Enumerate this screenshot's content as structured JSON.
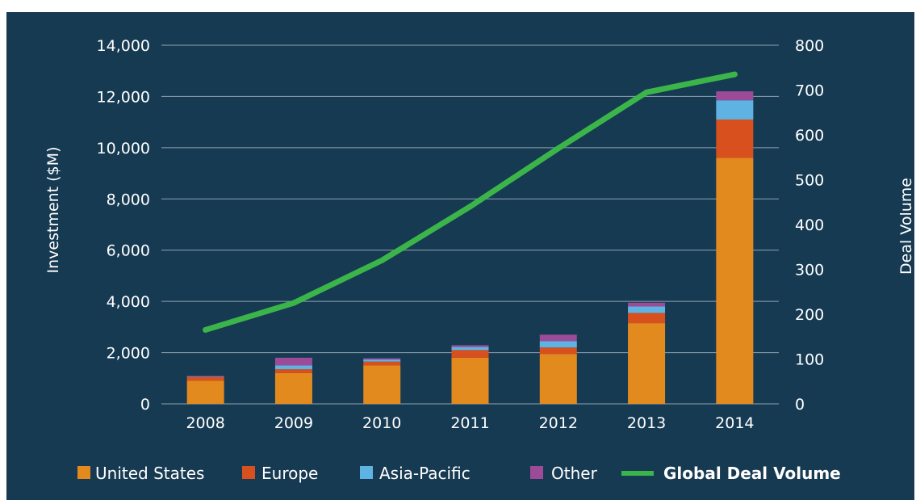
{
  "chart_data": {
    "type": "bar",
    "stacked": true,
    "categories": [
      "2008",
      "2009",
      "2010",
      "2011",
      "2012",
      "2013",
      "2014"
    ],
    "series": [
      {
        "name": "United States",
        "color": "#e38a1f",
        "axis": "left",
        "values": [
          900,
          1200,
          1500,
          1800,
          1950,
          3150,
          9600
        ]
      },
      {
        "name": "Europe",
        "color": "#d8501e",
        "axis": "left",
        "values": [
          150,
          150,
          150,
          300,
          250,
          400,
          1500
        ]
      },
      {
        "name": "Asia-Pacific",
        "color": "#5fb3e3",
        "axis": "left",
        "values": [
          20,
          150,
          80,
          120,
          250,
          250,
          750
        ]
      },
      {
        "name": "Other",
        "color": "#9b4b98",
        "axis": "left",
        "values": [
          20,
          300,
          50,
          70,
          250,
          150,
          350
        ]
      }
    ],
    "line_series": {
      "name": "Global Deal Volume",
      "color": "#3bb54a",
      "axis": "right",
      "values": [
        165,
        225,
        320,
        440,
        570,
        695,
        735
      ]
    },
    "ylabel": "Investment ($M)",
    "y2label": "Deal Volume",
    "ylim": [
      0,
      14000
    ],
    "y2lim": [
      0,
      800
    ],
    "yticks": [
      "0",
      "2,000",
      "4,000",
      "6,000",
      "8,000",
      "10,000",
      "12,000",
      "14,000"
    ],
    "y2ticks": [
      "0",
      "100",
      "200",
      "300",
      "400",
      "500",
      "600",
      "700",
      "800"
    ],
    "grid": true,
    "legend_position": "bottom"
  }
}
